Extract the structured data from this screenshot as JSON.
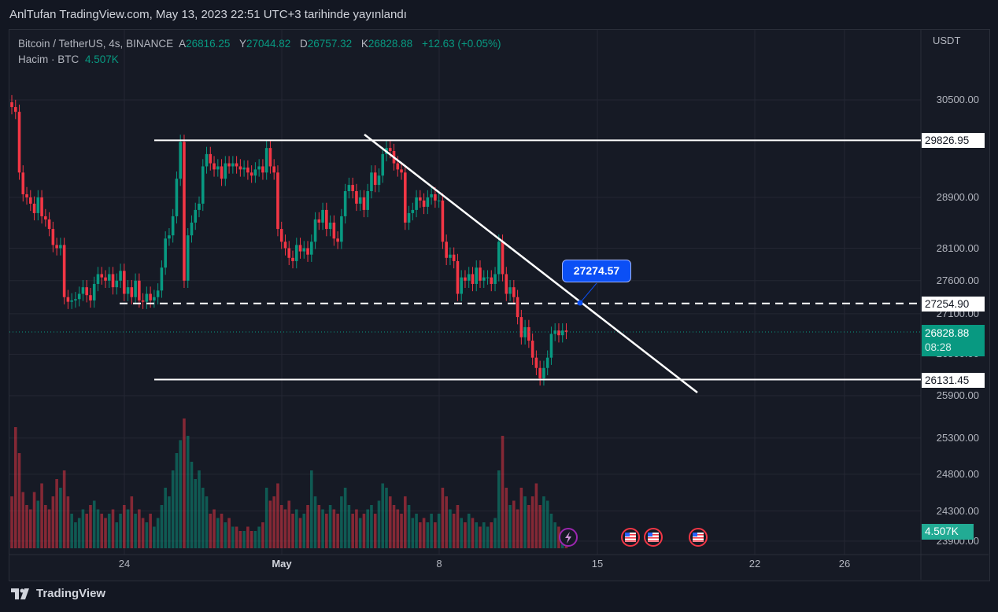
{
  "published": "AnlTufan TradingView.com, May 13, 2023 22:51 UTC+3 tarihinde yayınlandı",
  "legend": {
    "symbol": "Bitcoin / TetherUS, 4s, BINANCE",
    "open_label": "A",
    "open": "26816.25",
    "high_label": "Y",
    "high": "27044.82",
    "low_label": "D",
    "low": "26757.32",
    "close_label": "K",
    "close": "26828.88",
    "change": "+12.63 (+0.05%)",
    "volume_label": "Hacim · BTC",
    "volume": "4.507K"
  },
  "currency": "USDT",
  "footer_brand": "TradingView",
  "colors": {
    "up": "#089981",
    "down": "#f23645",
    "background": "#161a25",
    "grid": "#242733",
    "callout": "#0b4ff5"
  },
  "chart_data": {
    "type": "candlestick",
    "interval": "4h",
    "y_scale": "log",
    "grid": true,
    "price_ticks": [
      "30500.00",
      "28900.00",
      "28100.00",
      "27600.00",
      "27100.00",
      "26500.00",
      "25900.00",
      "25300.00",
      "24800.00",
      "24300.00",
      "23900.00"
    ],
    "date_ticks": [
      "24",
      "May",
      "8",
      "15",
      "22",
      "26"
    ],
    "closes": [
      30380,
      30300,
      29300,
      28950,
      28900,
      28800,
      28650,
      28900,
      28600,
      28550,
      28400,
      28150,
      28100,
      28150,
      27350,
      27280,
      27300,
      27320,
      27400,
      27500,
      27380,
      27300,
      27550,
      27700,
      27650,
      27600,
      27700,
      27500,
      27600,
      27750,
      27400,
      27500,
      27350,
      27600,
      27300,
      27280,
      27400,
      27300,
      27350,
      27450,
      27800,
      28250,
      28300,
      28600,
      29200,
      29800,
      27600,
      28300,
      28500,
      28700,
      28800,
      29400,
      29600,
      29450,
      29350,
      29400,
      29200,
      29450,
      29400,
      29450,
      29400,
      29350,
      29380,
      29300,
      29250,
      29350,
      29400,
      29300,
      29700,
      29400,
      29300,
      28400,
      28200,
      28100,
      27950,
      27900,
      28150,
      28050,
      28100,
      28000,
      28200,
      28550,
      28500,
      28700,
      28400,
      28500,
      28250,
      28200,
      28600,
      29000,
      29100,
      29000,
      28800,
      28900,
      28700,
      29000,
      29300,
      29100,
      29250,
      29600,
      29700,
      29650,
      29450,
      29350,
      29300,
      28500,
      28650,
      28700,
      28900,
      28850,
      28750,
      28900,
      28950,
      28850,
      28850,
      28200,
      27950,
      28000,
      27900,
      27400,
      27650,
      27600,
      27700,
      27550,
      27800,
      27600,
      27650,
      27650,
      27550,
      27700,
      28200,
      27700,
      27400,
      27500,
      27350,
      27050,
      26750,
      26900,
      26700,
      26450,
      26300,
      26150,
      26300,
      26450,
      26800,
      26850,
      26780,
      26850,
      26830
    ],
    "volumes_k": [
      12,
      28,
      22,
      13,
      10,
      9,
      13,
      11,
      15,
      10,
      9,
      12,
      16,
      14,
      18,
      12,
      8,
      6,
      7,
      9,
      8,
      10,
      11,
      9,
      8,
      7,
      8,
      9,
      6,
      8,
      10,
      9,
      12,
      8,
      9,
      7,
      6,
      8,
      5,
      7,
      10,
      14,
      12,
      18,
      22,
      25,
      30,
      26,
      20,
      16,
      18,
      14,
      12,
      8,
      9,
      7,
      8,
      6,
      7,
      5,
      5,
      4,
      4,
      5,
      4,
      4,
      5,
      6,
      14,
      11,
      12,
      15,
      10,
      9,
      11,
      8,
      9,
      7,
      8,
      10,
      18,
      12,
      10,
      9,
      8,
      10,
      9,
      8,
      12,
      14,
      10,
      8,
      9,
      7,
      8,
      9,
      10,
      8,
      11,
      15,
      14,
      12,
      10,
      9,
      8,
      12,
      10,
      7,
      8,
      6,
      7,
      6,
      8,
      6,
      8,
      14,
      12,
      9,
      8,
      10,
      7,
      6,
      8,
      7,
      6,
      5,
      6,
      5,
      6,
      7,
      18,
      26,
      14,
      10,
      11,
      9,
      14,
      12,
      10,
      12,
      15,
      10,
      12,
      11,
      8,
      6,
      5,
      4,
      4.5
    ],
    "horizontal_levels": [
      {
        "price": 29826.95,
        "label": "29826.95",
        "style": "solid"
      },
      {
        "price": 27254.9,
        "label": "27254.90",
        "style": "dashed"
      },
      {
        "price": 26131.45,
        "label": "26131.45",
        "style": "solid"
      }
    ],
    "trendline_callout": "27274.57",
    "last_price": "26828.88",
    "countdown": "08:28",
    "last_volume": "4.507K",
    "events": [
      "lightning-icon",
      "us-flag-icon",
      "us-flag-icon",
      "us-flag-icon"
    ]
  }
}
